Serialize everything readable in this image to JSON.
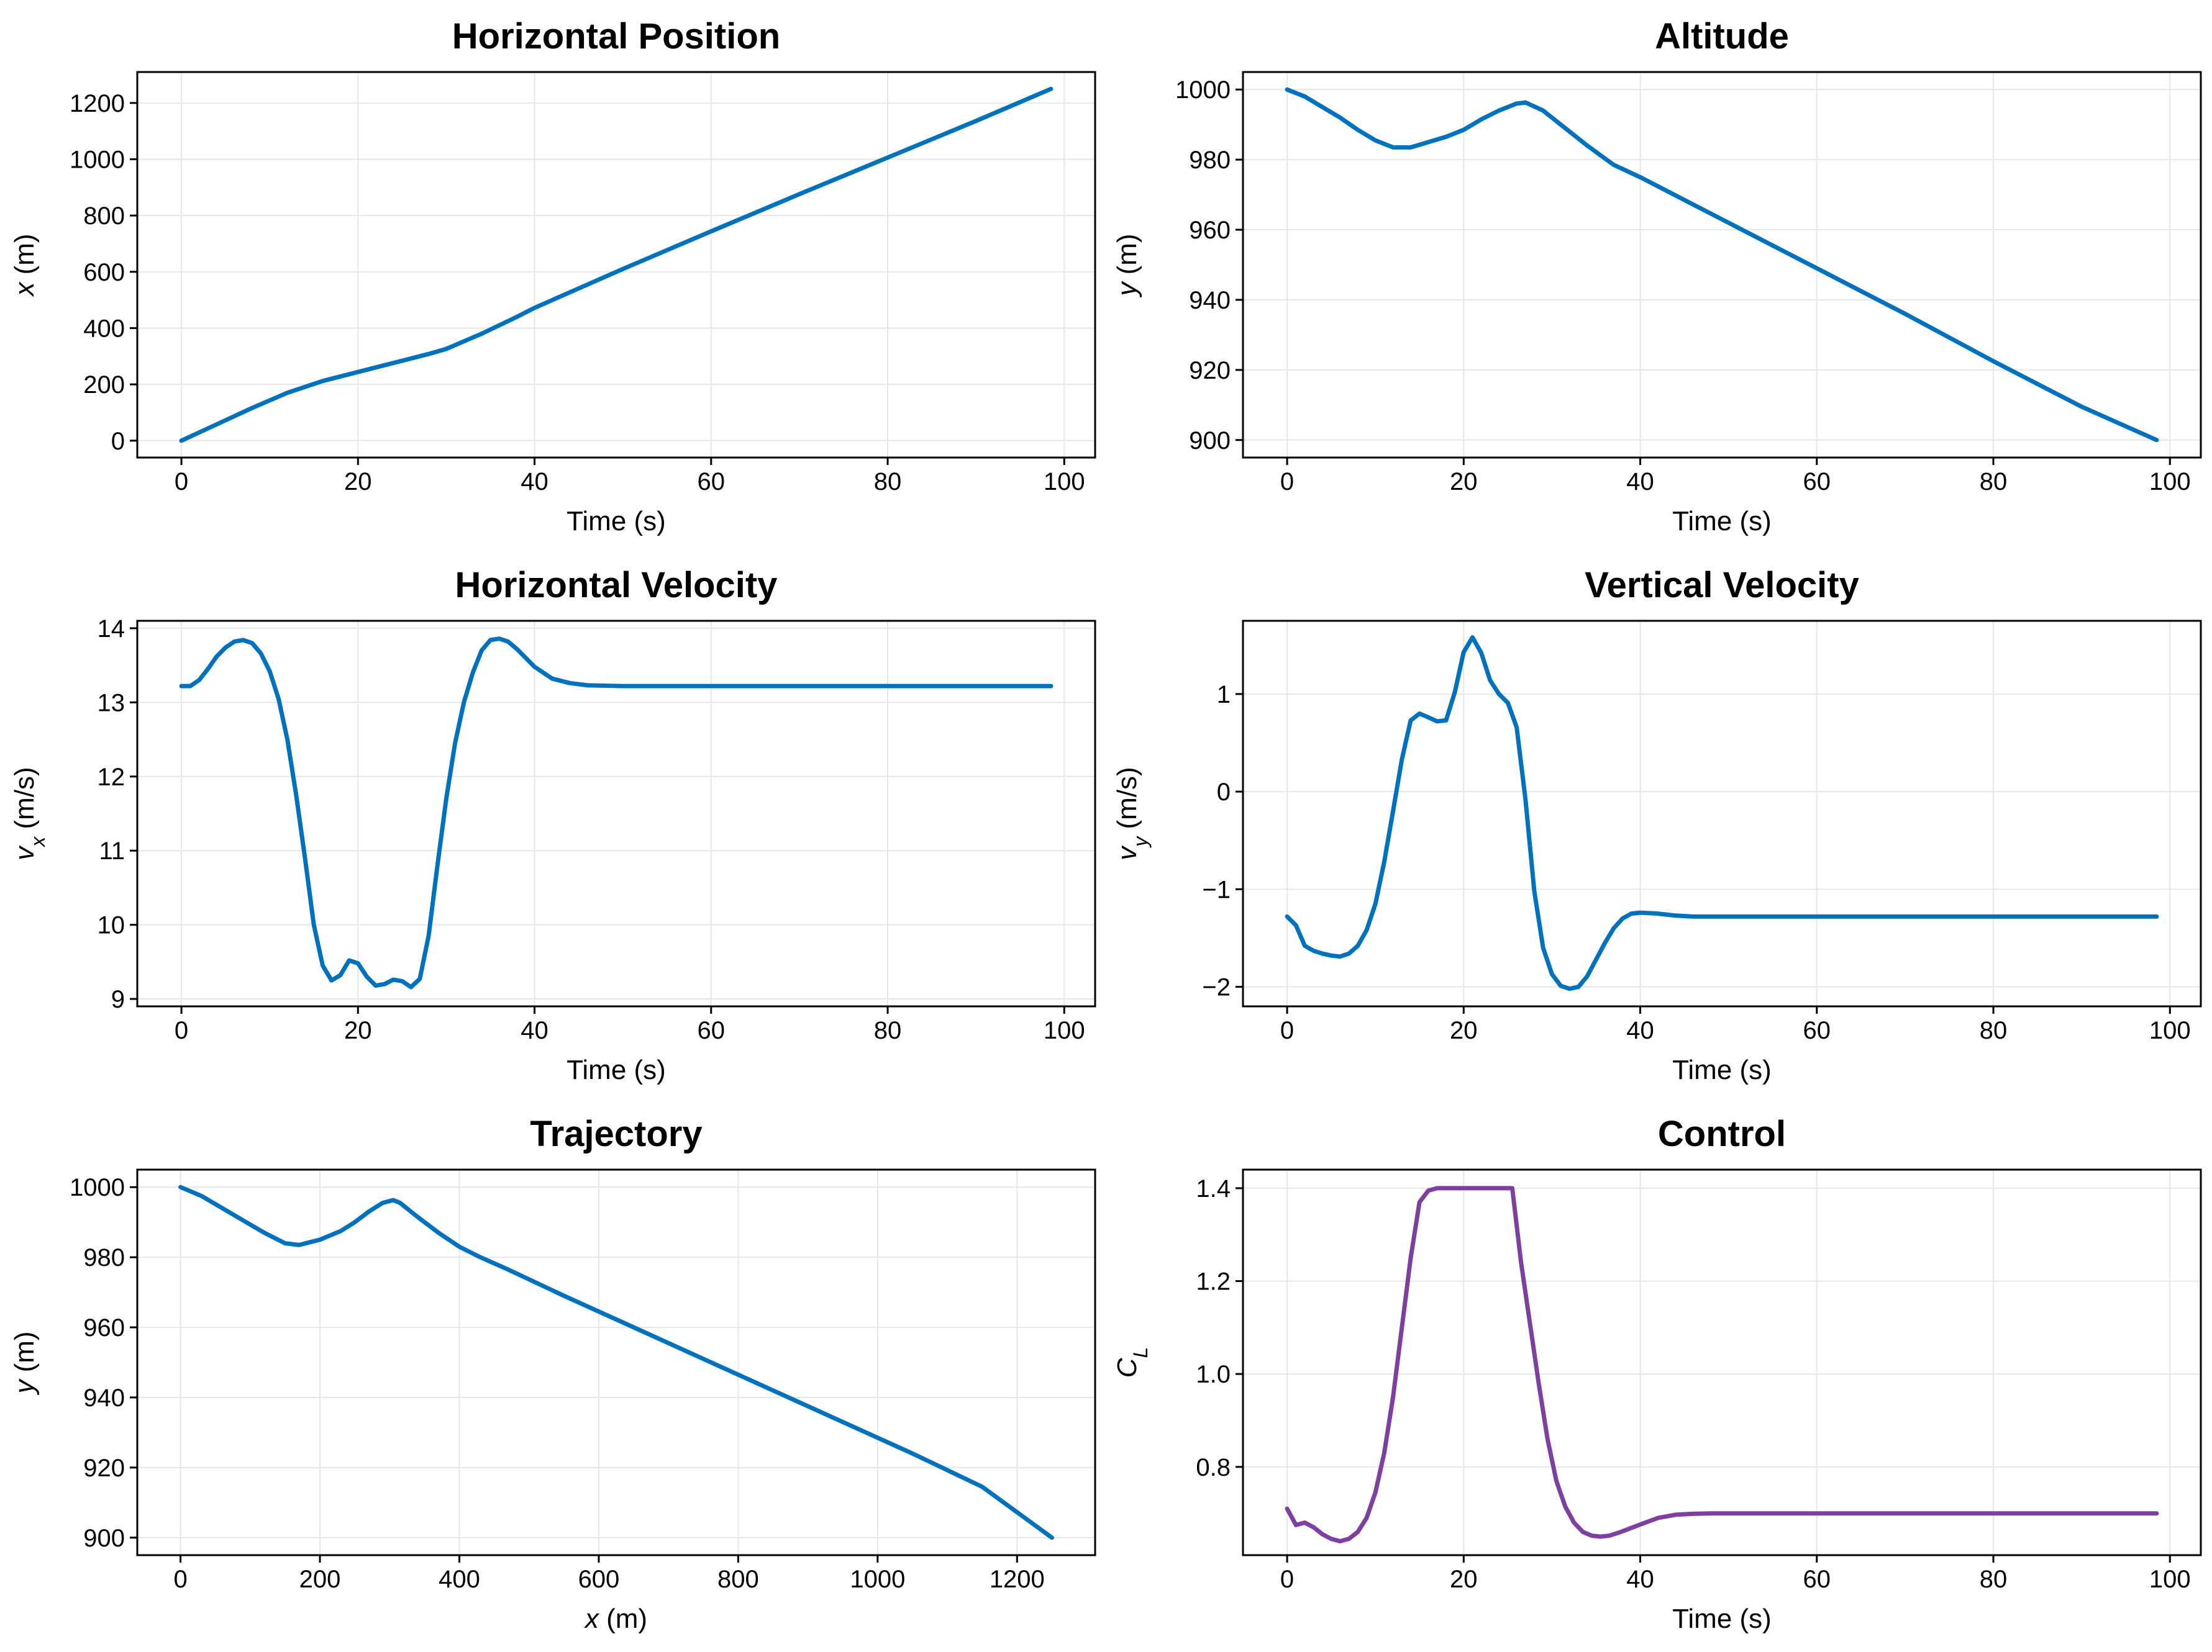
{
  "colors": {
    "blue": "#0072bd",
    "purple": "#7e3fa0",
    "grid": "#e6e6e6"
  },
  "chart_data": [
    {
      "type": "line",
      "title": "Horizontal Position",
      "xlabel": "Time (s)",
      "ylabel": "x (m)",
      "ylabel_parts": [
        {
          "t": "x",
          "style": "italic"
        },
        {
          "t": " (m)"
        }
      ],
      "xlim": [
        -5,
        103.5
      ],
      "ylim": [
        -60,
        1310
      ],
      "xticks": [
        0,
        20,
        40,
        60,
        80,
        100
      ],
      "yticks": [
        0,
        200,
        400,
        600,
        800,
        1000,
        1200
      ],
      "xtick_labels": [
        "0",
        "20",
        "40",
        "60",
        "80",
        "100"
      ],
      "ytick_labels": [
        "0",
        "200",
        "400",
        "600",
        "800",
        "1000",
        "1200"
      ],
      "color": "blue",
      "series": [
        {
          "name": "x",
          "x": [
            0,
            4,
            8,
            12,
            16,
            20,
            24,
            28,
            30,
            34,
            38,
            40,
            50,
            60,
            70,
            80,
            90,
            98.5
          ],
          "y": [
            0,
            58,
            116,
            170,
            212,
            244,
            276,
            308,
            326,
            380,
            440,
            472,
            610,
            744,
            876,
            1006,
            1136,
            1250
          ]
        }
      ]
    },
    {
      "type": "line",
      "title": "Altitude",
      "xlabel": "Time (s)",
      "ylabel": "y (m)",
      "ylabel_parts": [
        {
          "t": "y",
          "style": "italic"
        },
        {
          "t": " (m)"
        }
      ],
      "xlim": [
        -5,
        103.5
      ],
      "ylim": [
        895,
        1005
      ],
      "xticks": [
        0,
        20,
        40,
        60,
        80,
        100
      ],
      "yticks": [
        900,
        920,
        940,
        960,
        980,
        1000
      ],
      "xtick_labels": [
        "0",
        "20",
        "40",
        "60",
        "80",
        "100"
      ],
      "ytick_labels": [
        "900",
        "920",
        "940",
        "960",
        "980",
        "1000"
      ],
      "color": "blue",
      "series": [
        {
          "name": "y",
          "x": [
            0,
            2,
            4,
            6,
            8,
            10,
            12,
            14,
            16,
            18,
            20,
            22,
            24,
            26,
            27,
            29,
            31,
            34,
            37,
            40,
            45,
            50,
            60,
            70,
            80,
            90,
            98.5
          ],
          "y": [
            1000,
            998,
            995,
            992,
            988.5,
            985.5,
            983.5,
            983.5,
            985,
            986.5,
            988.5,
            991.5,
            994,
            996,
            996.3,
            994,
            990,
            984,
            978.5,
            975,
            968.5,
            962,
            949,
            936,
            922.5,
            909.5,
            900
          ]
        }
      ]
    },
    {
      "type": "line",
      "title": "Horizontal Velocity",
      "xlabel": "Time (s)",
      "ylabel": "v_x (m/s)",
      "ylabel_parts": [
        {
          "t": "v",
          "style": "italic"
        },
        {
          "t": "x",
          "style": "italic",
          "sub": true
        },
        {
          "t": " (m/s)"
        }
      ],
      "xlim": [
        -5,
        103.5
      ],
      "ylim": [
        8.9,
        14.1
      ],
      "xticks": [
        0,
        20,
        40,
        60,
        80,
        100
      ],
      "yticks": [
        9,
        10,
        11,
        12,
        13,
        14
      ],
      "xtick_labels": [
        "0",
        "20",
        "40",
        "60",
        "80",
        "100"
      ],
      "ytick_labels": [
        "9",
        "10",
        "11",
        "12",
        "13",
        "14"
      ],
      "color": "blue",
      "series": [
        {
          "name": "v_x",
          "x": [
            0,
            1,
            2,
            3,
            4,
            5,
            6,
            7,
            8,
            9,
            10,
            11,
            12,
            13,
            14,
            15,
            16,
            17,
            18,
            19,
            20,
            21,
            22,
            23,
            24,
            25,
            26,
            27,
            28,
            29,
            30,
            31,
            32,
            33,
            34,
            35,
            36,
            37,
            38,
            39,
            40,
            42,
            44,
            46,
            50,
            60,
            70,
            80,
            90,
            98.5
          ],
          "y": [
            13.22,
            13.22,
            13.3,
            13.45,
            13.62,
            13.74,
            13.82,
            13.84,
            13.8,
            13.66,
            13.42,
            13.05,
            12.5,
            11.75,
            10.9,
            10.0,
            9.45,
            9.25,
            9.32,
            9.52,
            9.48,
            9.3,
            9.18,
            9.2,
            9.26,
            9.24,
            9.16,
            9.27,
            9.85,
            10.8,
            11.7,
            12.45,
            13.0,
            13.4,
            13.7,
            13.84,
            13.86,
            13.82,
            13.72,
            13.6,
            13.48,
            13.32,
            13.26,
            13.23,
            13.22,
            13.22,
            13.22,
            13.22,
            13.22,
            13.22
          ]
        }
      ]
    },
    {
      "type": "line",
      "title": "Vertical Velocity",
      "xlabel": "Time (s)",
      "ylabel": "v_y (m/s)",
      "ylabel_parts": [
        {
          "t": "v",
          "style": "italic"
        },
        {
          "t": "y",
          "style": "italic",
          "sub": true
        },
        {
          "t": " (m/s)"
        }
      ],
      "xlim": [
        -5,
        103.5
      ],
      "ylim": [
        -2.2,
        1.75
      ],
      "xticks": [
        0,
        20,
        40,
        60,
        80,
        100
      ],
      "yticks": [
        -2,
        -1,
        0,
        1
      ],
      "xtick_labels": [
        "0",
        "20",
        "40",
        "60",
        "80",
        "100"
      ],
      "ytick_labels": [
        "−2",
        "−1",
        "0",
        "1"
      ],
      "color": "blue",
      "series": [
        {
          "name": "v_y",
          "x": [
            0,
            1,
            2,
            3,
            4,
            5,
            6,
            7,
            8,
            9,
            10,
            11,
            12,
            13,
            14,
            15,
            16,
            17,
            18,
            19,
            20,
            21,
            22,
            23,
            24,
            25,
            26,
            27,
            28,
            29,
            30,
            31,
            32,
            33,
            34,
            35,
            36,
            37,
            38,
            39,
            40,
            42,
            44,
            46,
            50,
            60,
            70,
            80,
            90,
            98.5
          ],
          "y": [
            -1.28,
            -1.37,
            -1.58,
            -1.63,
            -1.66,
            -1.68,
            -1.69,
            -1.66,
            -1.58,
            -1.42,
            -1.15,
            -0.72,
            -0.2,
            0.33,
            0.73,
            0.8,
            0.76,
            0.72,
            0.73,
            1.02,
            1.43,
            1.58,
            1.42,
            1.14,
            1.0,
            0.91,
            0.66,
            -0.08,
            -1.02,
            -1.6,
            -1.87,
            -1.99,
            -2.02,
            -2.0,
            -1.89,
            -1.72,
            -1.55,
            -1.4,
            -1.3,
            -1.25,
            -1.24,
            -1.25,
            -1.27,
            -1.28,
            -1.28,
            -1.28,
            -1.28,
            -1.28,
            -1.28,
            -1.28
          ]
        }
      ]
    },
    {
      "type": "line",
      "title": "Trajectory",
      "xlabel": "x (m)",
      "ylabel": "y (m)",
      "xlabel_parts": [
        {
          "t": "x",
          "style": "italic"
        },
        {
          "t": " (m)"
        }
      ],
      "ylabel_parts": [
        {
          "t": "y",
          "style": "italic"
        },
        {
          "t": " (m)"
        }
      ],
      "xlim": [
        -62,
        1312
      ],
      "ylim": [
        895,
        1005
      ],
      "xticks": [
        0,
        200,
        400,
        600,
        800,
        1000,
        1200
      ],
      "yticks": [
        900,
        920,
        940,
        960,
        980,
        1000
      ],
      "xtick_labels": [
        "0",
        "200",
        "400",
        "600",
        "800",
        "1000",
        "1200"
      ],
      "ytick_labels": [
        "900",
        "920",
        "940",
        "960",
        "980",
        "1000"
      ],
      "color": "blue",
      "series": [
        {
          "name": "trajectory",
          "x": [
            0,
            30,
            60,
            90,
            120,
            150,
            170,
            200,
            230,
            250,
            270,
            290,
            305,
            315,
            340,
            370,
            400,
            430,
            470,
            550,
            650,
            750,
            850,
            950,
            1050,
            1150,
            1250
          ],
          "y": [
            1000,
            997.5,
            994,
            990.5,
            987,
            984,
            983.5,
            985,
            987.5,
            990,
            993,
            995.5,
            996.3,
            995.5,
            991.5,
            987,
            983,
            980,
            976.5,
            969,
            960,
            951,
            942,
            933,
            924,
            914.5,
            900
          ]
        }
      ]
    },
    {
      "type": "line",
      "title": "Control",
      "xlabel": "Time (s)",
      "ylabel": "C_L",
      "ylabel_parts": [
        {
          "t": "C",
          "style": "italic"
        },
        {
          "t": "L",
          "style": "italic",
          "sub": true
        }
      ],
      "xlim": [
        -5,
        103.5
      ],
      "ylim": [
        0.61,
        1.44
      ],
      "xticks": [
        0,
        20,
        40,
        60,
        80,
        100
      ],
      "yticks": [
        0.8,
        1.0,
        1.2,
        1.4
      ],
      "xtick_labels": [
        "0",
        "20",
        "40",
        "60",
        "80",
        "100"
      ],
      "ytick_labels": [
        "0.8",
        "1.0",
        "1.2",
        "1.4"
      ],
      "color": "purple",
      "series": [
        {
          "name": "C_L",
          "x": [
            0,
            1,
            2,
            3,
            4,
            5,
            6,
            7,
            8,
            9,
            10,
            11,
            12,
            13,
            14,
            15,
            16,
            17,
            18,
            20,
            22,
            24,
            25.5,
            26.5,
            27.5,
            28.5,
            29.5,
            30.5,
            31.5,
            32.5,
            33.5,
            34.5,
            35.5,
            36.5,
            37.5,
            38.5,
            40,
            42,
            44,
            46,
            48,
            50,
            60,
            70,
            80,
            90,
            98.5
          ],
          "y": [
            0.71,
            0.675,
            0.68,
            0.67,
            0.655,
            0.645,
            0.64,
            0.645,
            0.66,
            0.69,
            0.745,
            0.83,
            0.95,
            1.1,
            1.25,
            1.37,
            1.395,
            1.4,
            1.4,
            1.4,
            1.4,
            1.4,
            1.4,
            1.24,
            1.11,
            0.98,
            0.86,
            0.77,
            0.715,
            0.68,
            0.66,
            0.652,
            0.65,
            0.652,
            0.658,
            0.665,
            0.676,
            0.69,
            0.697,
            0.699,
            0.7,
            0.7,
            0.7,
            0.7,
            0.7,
            0.7,
            0.7
          ]
        }
      ]
    }
  ]
}
